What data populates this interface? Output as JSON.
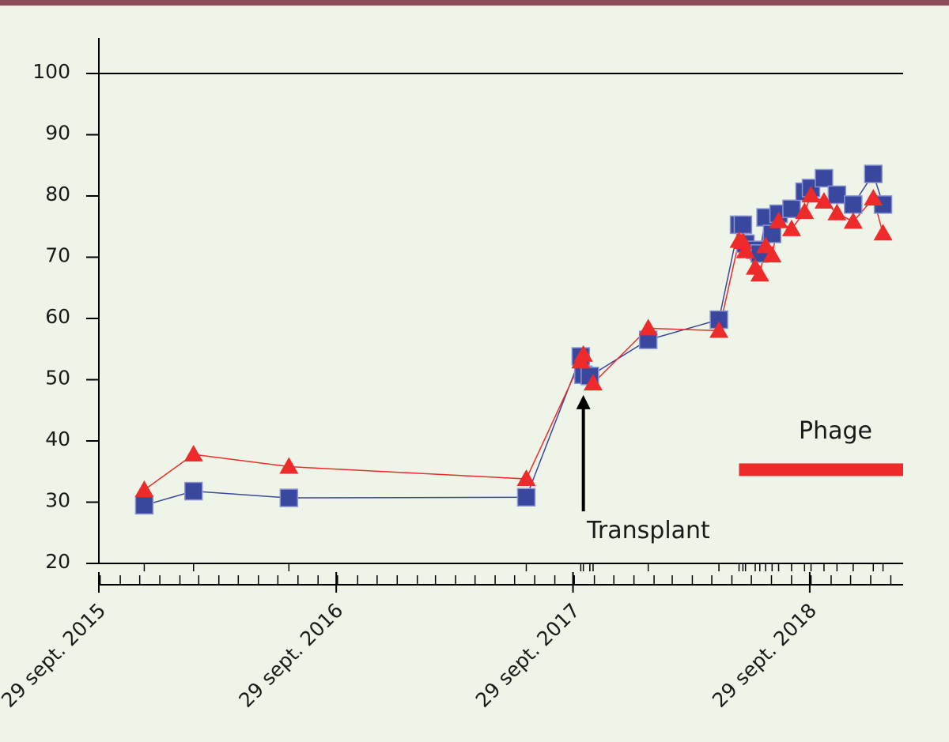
{
  "colors": {
    "background": "#eef5e8",
    "top_bar": "#8f4a57",
    "axis": "#000000",
    "series_square": "#3a479e",
    "series_triangle": "#ee2a2a",
    "phage_bar": "#ee2a2a"
  },
  "chart_data": {
    "type": "line",
    "title": "",
    "xlabel": "",
    "ylabel": "",
    "ylim": [
      20,
      100
    ],
    "xlim": [
      "2015-09-29",
      "2019-02-20"
    ],
    "y_ticks": [
      "20",
      "30",
      "40",
      "50",
      "60",
      "70",
      "80",
      "90",
      "100"
    ],
    "x_tick_labels": [
      {
        "date": "2015-09-29",
        "label": "29 sept. 2015"
      },
      {
        "date": "2016-09-29",
        "label": "29 sept. 2016"
      },
      {
        "date": "2017-09-29",
        "label": "29 sept. 2017"
      },
      {
        "date": "2018-09-29",
        "label": "29 sept. 2018"
      }
    ],
    "reference_line_y": 100,
    "grid": false,
    "legend": "none",
    "series": [
      {
        "marker": "square",
        "color": "#3a479e",
        "points": [
          [
            "2015-12-08",
            29.5
          ],
          [
            "2016-02-22",
            31.8
          ],
          [
            "2016-07-18",
            30.7
          ],
          [
            "2017-07-19",
            30.8
          ],
          [
            "2017-10-11",
            53.8
          ],
          [
            "2017-10-15",
            50.8
          ],
          [
            "2017-10-25",
            50.6
          ],
          [
            "2018-01-23",
            56.5
          ],
          [
            "2018-05-12",
            59.8
          ],
          [
            "2018-06-12",
            75.3
          ],
          [
            "2018-06-18",
            75.3
          ],
          [
            "2018-06-22",
            72.2
          ],
          [
            "2018-07-07",
            71.2
          ],
          [
            "2018-07-14",
            70.6
          ],
          [
            "2018-07-23",
            76.5
          ],
          [
            "2018-08-02",
            73.8
          ],
          [
            "2018-08-12",
            77.1
          ],
          [
            "2018-09-01",
            77.9
          ],
          [
            "2018-09-21",
            80.7
          ],
          [
            "2018-10-01",
            81.3
          ],
          [
            "2018-10-21",
            82.9
          ],
          [
            "2018-11-10",
            80.2
          ],
          [
            "2018-12-05",
            78.6
          ],
          [
            "2019-01-05",
            83.6
          ],
          [
            "2019-01-20",
            78.6
          ]
        ]
      },
      {
        "marker": "triangle",
        "color": "#ee2a2a",
        "points": [
          [
            "2015-12-08",
            32.0
          ],
          [
            "2016-02-22",
            37.8
          ],
          [
            "2016-07-18",
            35.8
          ],
          [
            "2017-07-19",
            33.8
          ],
          [
            "2017-10-11",
            53.0
          ],
          [
            "2017-10-15",
            54.1
          ],
          [
            "2017-10-30",
            49.4
          ],
          [
            "2018-01-23",
            58.4
          ],
          [
            "2018-05-12",
            58.0
          ],
          [
            "2018-06-12",
            72.7
          ],
          [
            "2018-06-18",
            72.5
          ],
          [
            "2018-06-22",
            71.0
          ],
          [
            "2018-07-07",
            68.3
          ],
          [
            "2018-07-14",
            67.2
          ],
          [
            "2018-07-23",
            71.8
          ],
          [
            "2018-08-02",
            70.3
          ],
          [
            "2018-08-12",
            75.9
          ],
          [
            "2018-09-01",
            74.6
          ],
          [
            "2018-09-21",
            77.4
          ],
          [
            "2018-10-01",
            80.1
          ],
          [
            "2018-10-21",
            79.1
          ],
          [
            "2018-11-10",
            77.2
          ],
          [
            "2018-12-05",
            75.8
          ],
          [
            "2019-01-05",
            79.6
          ],
          [
            "2019-01-20",
            73.9
          ]
        ]
      }
    ],
    "annotations": {
      "transplant": {
        "label": "Transplant",
        "date": "2017-10-15",
        "arrow_tip_y": 47.5,
        "arrow_tail_y": 28.5
      },
      "phage": {
        "label": "Phage",
        "start": "2018-06-12",
        "end": "2019-02-20",
        "y": 35.3
      }
    }
  }
}
